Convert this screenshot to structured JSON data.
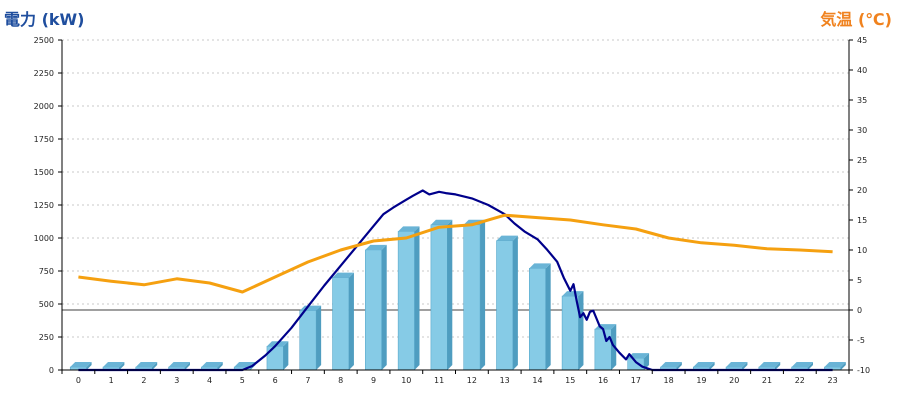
{
  "chart_data": {
    "type": "bar",
    "y_left_label": "電力 (kW)",
    "y_right_label": "気温 (℃)",
    "x": [
      0,
      1,
      2,
      3,
      4,
      5,
      6,
      7,
      8,
      9,
      10,
      11,
      12,
      13,
      14,
      15,
      16,
      17,
      18,
      19,
      20,
      21,
      22,
      23
    ],
    "y_left_ticks": [
      0,
      250,
      500,
      750,
      1000,
      1250,
      1500,
      1750,
      2000,
      2250,
      2500
    ],
    "y_right_ticks": [
      -10,
      -5,
      0,
      5,
      10,
      15,
      20,
      25,
      30,
      35,
      40,
      45
    ],
    "ylim_left": [
      0,
      2500
    ],
    "ylim_right": [
      -10,
      45
    ],
    "grid": true,
    "bars": {
      "values": [
        0,
        0,
        0,
        0,
        0,
        0,
        180,
        450,
        700,
        910,
        1050,
        1100,
        1100,
        980,
        770,
        560,
        310,
        90,
        0,
        0,
        0,
        0,
        0,
        0
      ],
      "color": "#86cbe6"
    },
    "power_line": {
      "color": "#00008b",
      "points": [
        [
          0,
          0
        ],
        [
          1,
          0
        ],
        [
          2,
          0
        ],
        [
          3,
          0
        ],
        [
          4,
          0
        ],
        [
          5,
          0
        ],
        [
          5.3,
          30
        ],
        [
          5.7,
          110
        ],
        [
          6,
          180
        ],
        [
          6.5,
          320
        ],
        [
          7,
          480
        ],
        [
          7.5,
          640
        ],
        [
          8,
          790
        ],
        [
          8.5,
          940
        ],
        [
          9,
          1090
        ],
        [
          9.3,
          1180
        ],
        [
          9.6,
          1230
        ],
        [
          10,
          1290
        ],
        [
          10.2,
          1320
        ],
        [
          10.5,
          1360
        ],
        [
          10.7,
          1330
        ],
        [
          11,
          1350
        ],
        [
          11.2,
          1340
        ],
        [
          11.5,
          1330
        ],
        [
          12,
          1300
        ],
        [
          12.5,
          1250
        ],
        [
          13,
          1180
        ],
        [
          13.3,
          1110
        ],
        [
          13.6,
          1050
        ],
        [
          14,
          990
        ],
        [
          14.3,
          910
        ],
        [
          14.6,
          820
        ],
        [
          14.8,
          700
        ],
        [
          15,
          600
        ],
        [
          15.1,
          650
        ],
        [
          15.2,
          520
        ],
        [
          15.3,
          400
        ],
        [
          15.4,
          430
        ],
        [
          15.5,
          380
        ],
        [
          15.6,
          440
        ],
        [
          15.7,
          450
        ],
        [
          15.8,
          390
        ],
        [
          15.9,
          330
        ],
        [
          16,
          310
        ],
        [
          16.1,
          220
        ],
        [
          16.2,
          250
        ],
        [
          16.3,
          190
        ],
        [
          16.5,
          130
        ],
        [
          16.7,
          80
        ],
        [
          16.8,
          120
        ],
        [
          17,
          60
        ],
        [
          17.2,
          25
        ],
        [
          17.5,
          0
        ],
        [
          18,
          0
        ],
        [
          19,
          0
        ],
        [
          20,
          0
        ],
        [
          21,
          0
        ],
        [
          22,
          0
        ],
        [
          23,
          0
        ]
      ]
    },
    "temperature_line": {
      "color": "#f5a010",
      "points": [
        [
          0,
          5.5
        ],
        [
          1,
          4.8
        ],
        [
          2,
          4.2
        ],
        [
          3,
          5.2
        ],
        [
          4,
          4.5
        ],
        [
          5,
          3.0
        ],
        [
          6,
          5.5
        ],
        [
          7,
          8.0
        ],
        [
          8,
          10.0
        ],
        [
          9,
          11.5
        ],
        [
          10,
          12.0
        ],
        [
          11,
          13.8
        ],
        [
          12,
          14.2
        ],
        [
          13,
          15.8
        ],
        [
          14,
          15.4
        ],
        [
          15,
          15.0
        ],
        [
          16,
          14.2
        ],
        [
          17,
          13.5
        ],
        [
          18,
          12.0
        ],
        [
          19,
          11.2
        ],
        [
          20,
          10.8
        ],
        [
          21,
          10.2
        ],
        [
          22,
          10.0
        ],
        [
          23,
          9.7
        ]
      ]
    }
  }
}
